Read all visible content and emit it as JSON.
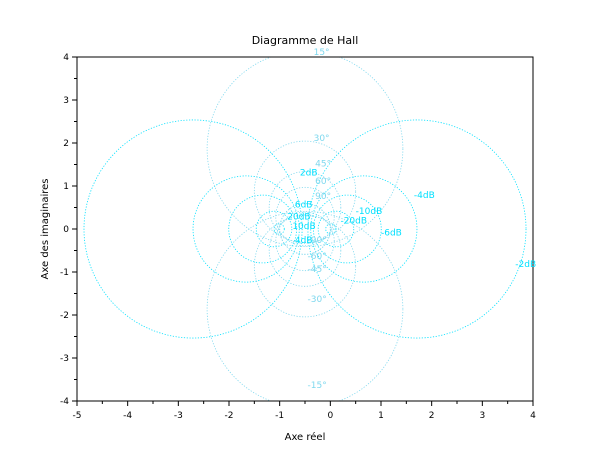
{
  "chart_data": {
    "type": "line",
    "title": "Diagramme de Hall",
    "xlabel": "Axe réel",
    "ylabel": "Axe des imaginaires",
    "xlim": [
      -5,
      4
    ],
    "ylim": [
      -4,
      4
    ],
    "xticks": [
      -5,
      -4,
      -3,
      -2,
      -1,
      0,
      1,
      2,
      3,
      4
    ],
    "yticks": [
      -4,
      -3,
      -2,
      -1,
      0,
      1,
      2,
      3,
      4
    ],
    "grid": false,
    "colors": {
      "magnitude": "#00e0ff",
      "phase": "#7fd8ee",
      "frame": "#000000"
    },
    "magnitude_db": [
      -20,
      -10,
      -6,
      -4,
      -2,
      2,
      4,
      6,
      10,
      20
    ],
    "phase_deg": [
      -90,
      -60,
      -45,
      -30,
      -15,
      15,
      30,
      45,
      60,
      90
    ],
    "labels": [
      {
        "text": "15°",
        "x": -0.33,
        "y": 4.05,
        "kind": "phase"
      },
      {
        "text": "30°",
        "x": -0.33,
        "y": 2.05,
        "kind": "phase"
      },
      {
        "text": "2dB",
        "x": -0.6,
        "y": 1.25,
        "kind": "mag"
      },
      {
        "text": "45°",
        "x": -0.3,
        "y": 1.45,
        "kind": "phase"
      },
      {
        "text": "60°",
        "x": -0.3,
        "y": 1.05,
        "kind": "phase"
      },
      {
        "text": "90°",
        "x": -0.3,
        "y": 0.7,
        "kind": "phase"
      },
      {
        "text": "6dB",
        "x": -0.7,
        "y": 0.5,
        "kind": "mag"
      },
      {
        "text": "-4dB",
        "x": 1.65,
        "y": 0.72,
        "kind": "mag"
      },
      {
        "text": "-10dB",
        "x": 0.5,
        "y": 0.35,
        "kind": "mag"
      },
      {
        "text": "20dB",
        "x": -0.85,
        "y": 0.22,
        "kind": "mag"
      },
      {
        "text": "-20dB",
        "x": 0.2,
        "y": 0.13,
        "kind": "mag"
      },
      {
        "text": "10dB",
        "x": -0.75,
        "y": 0.0,
        "kind": "mag"
      },
      {
        "text": "-6dB",
        "x": 1.0,
        "y": -0.15,
        "kind": "mag"
      },
      {
        "text": "4dB",
        "x": -0.7,
        "y": -0.33,
        "kind": "mag"
      },
      {
        "text": "-90°",
        "x": -0.45,
        "y": -0.32,
        "kind": "phase"
      },
      {
        "text": "-60°",
        "x": -0.45,
        "y": -0.7,
        "kind": "phase"
      },
      {
        "text": "-45°",
        "x": -0.45,
        "y": -1.0,
        "kind": "phase"
      },
      {
        "text": "-2dB",
        "x": 3.65,
        "y": -0.88,
        "kind": "mag"
      },
      {
        "text": "-30°",
        "x": -0.45,
        "y": -1.7,
        "kind": "phase"
      },
      {
        "text": "-15°",
        "x": -0.45,
        "y": -3.7,
        "kind": "phase"
      }
    ]
  }
}
